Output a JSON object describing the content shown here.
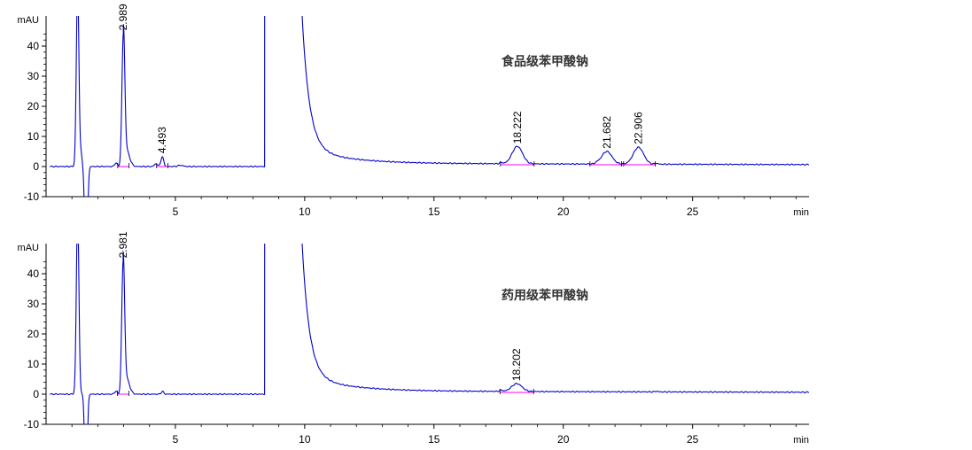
{
  "chart_data": [
    {
      "type": "line",
      "title": "食品级苯甲酸钠",
      "xlabel": "min",
      "ylabel": "mAU",
      "xlim": [
        0,
        29.5
      ],
      "ylim": [
        -10,
        50
      ],
      "xticks": [
        5,
        10,
        15,
        20,
        25
      ],
      "yticks": [
        -10,
        0,
        10,
        20,
        30,
        40
      ],
      "trace_color": "#0000cc",
      "baseline_color": "#ff00ff",
      "peaks": [
        {
          "label": "2.989",
          "rt": 2.989,
          "height": 44
        },
        {
          "label": "4.493",
          "rt": 4.493,
          "height": 3.2
        },
        {
          "label": "18.222",
          "rt": 18.222,
          "height": 5.8
        },
        {
          "label": "21.682",
          "rt": 21.682,
          "height": 4.2
        },
        {
          "label": "22.906",
          "rt": 22.906,
          "height": 5.6
        }
      ]
    },
    {
      "type": "line",
      "title": "药用级苯甲酸钠",
      "xlabel": "min",
      "ylabel": "mAU",
      "xlim": [
        0,
        29.5
      ],
      "ylim": [
        -10,
        50
      ],
      "xticks": [
        5,
        10,
        15,
        20,
        25
      ],
      "yticks": [
        -10,
        0,
        10,
        20,
        30,
        40
      ],
      "trace_color": "#0000cc",
      "baseline_color": "#ff00ff",
      "peaks": [
        {
          "label": "2.981",
          "rt": 2.981,
          "height": 44
        },
        {
          "label": "18.202",
          "rt": 18.202,
          "height": 2.6
        }
      ]
    }
  ]
}
